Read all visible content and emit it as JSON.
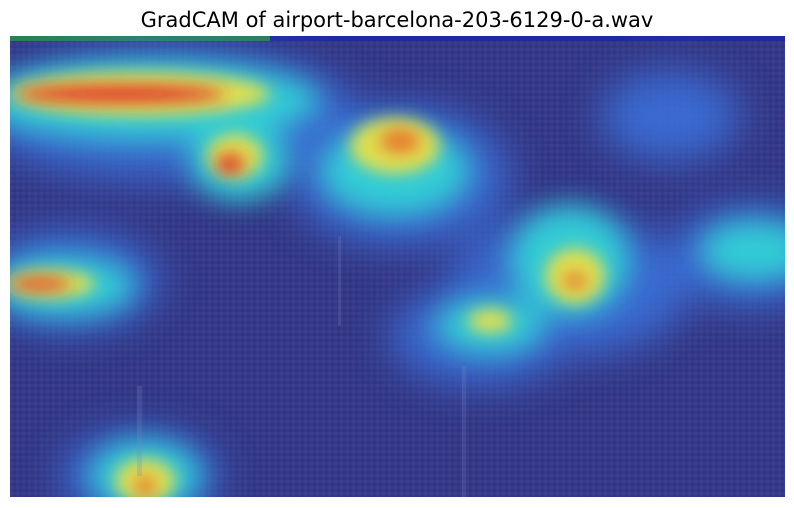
{
  "figure": {
    "title": "GradCAM of airport-barcelona-203-6129-0-a.wav"
  },
  "heatmap": {
    "colormap": "jet",
    "base_tone": "#3a3f8c",
    "colors": {
      "low": "#2a2f8a",
      "mid_low": "#3a6fd8",
      "mid": "#31d1d6",
      "mid_high": "#e8e04a",
      "high": "#e2262b"
    }
  }
}
